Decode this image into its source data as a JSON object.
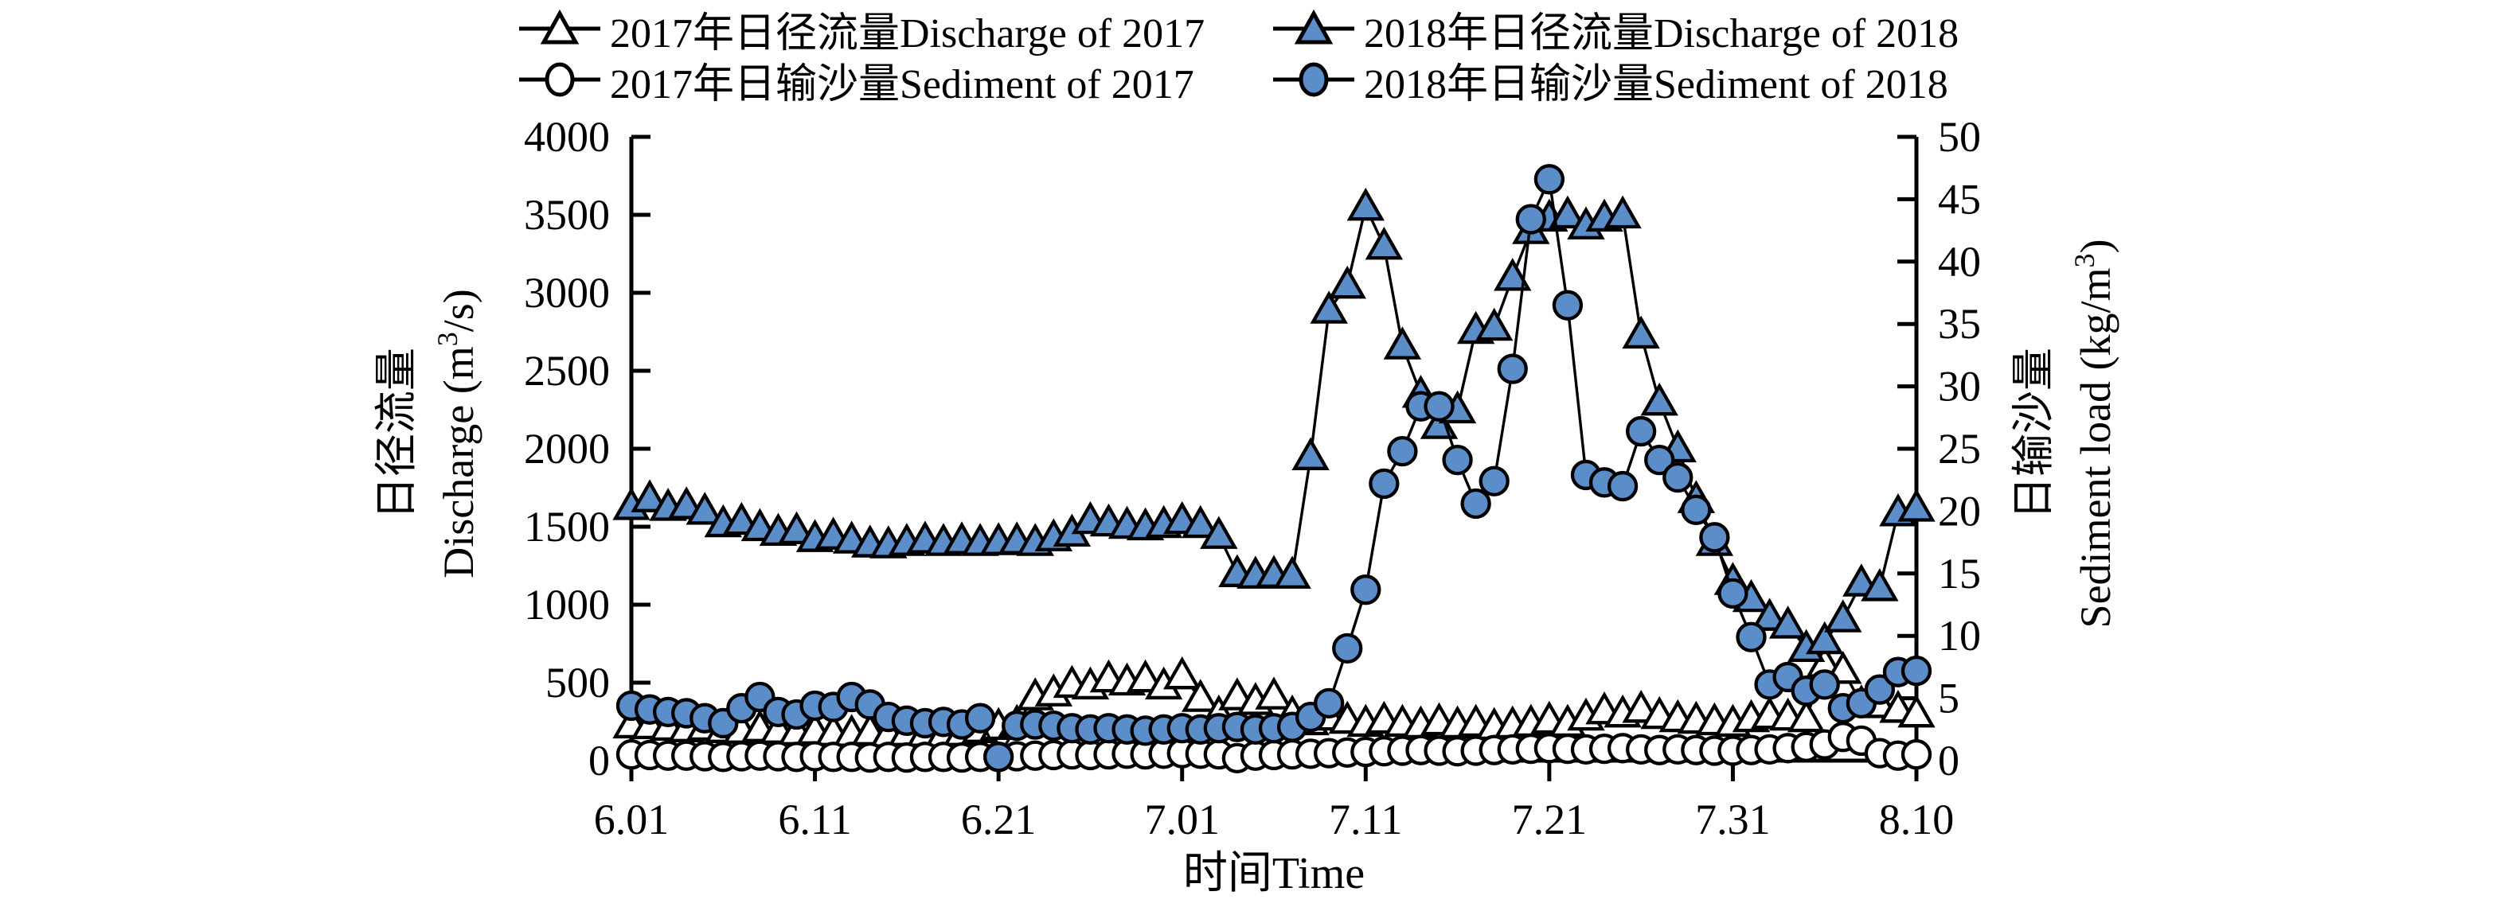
{
  "colors": {
    "marker_blue": "#5b8dc8",
    "open_fill": "#ffffff",
    "line": "#000000",
    "text": "#000000"
  },
  "legend": {
    "items": [
      {
        "id": "discharge-2017",
        "label": "2017年日径流量Discharge of 2017",
        "marker": "triangle-open"
      },
      {
        "id": "discharge-2018",
        "label": "2018年日径流量Discharge of 2018",
        "marker": "triangle-filled"
      },
      {
        "id": "sediment-2017",
        "label": "2017年日输沙量Sediment of 2017",
        "marker": "circle-open"
      },
      {
        "id": "sediment-2018",
        "label": "2018年日输沙量Sediment of 2018",
        "marker": "circle-filled"
      }
    ]
  },
  "chart_data": {
    "type": "line",
    "xlabel": "时间Time",
    "x_tick_labels": [
      "6.01",
      "6.11",
      "6.21",
      "7.01",
      "7.11",
      "7.21",
      "7.31",
      "8.10"
    ],
    "x_tick_positions": [
      0,
      10,
      20,
      30,
      40,
      50,
      60,
      70
    ],
    "x_dates": [
      "6.01",
      "6.02",
      "6.03",
      "6.04",
      "6.05",
      "6.06",
      "6.07",
      "6.08",
      "6.09",
      "6.10",
      "6.11",
      "6.12",
      "6.13",
      "6.14",
      "6.15",
      "6.16",
      "6.17",
      "6.18",
      "6.19",
      "6.20",
      "6.21",
      "6.22",
      "6.23",
      "6.24",
      "6.25",
      "6.26",
      "6.27",
      "6.28",
      "6.29",
      "6.30",
      "7.01",
      "7.02",
      "7.03",
      "7.04",
      "7.05",
      "7.06",
      "7.07",
      "7.08",
      "7.09",
      "7.10",
      "7.11",
      "7.12",
      "7.13",
      "7.14",
      "7.15",
      "7.16",
      "7.17",
      "7.18",
      "7.19",
      "7.20",
      "7.21",
      "7.22",
      "7.23",
      "7.24",
      "7.25",
      "7.26",
      "7.27",
      "7.28",
      "7.29",
      "7.30",
      "7.31",
      "8.01",
      "8.02",
      "8.03",
      "8.04",
      "8.05",
      "8.06",
      "8.07",
      "8.08",
      "8.09",
      "8.10"
    ],
    "left_axis": {
      "title_cn": "日径流量",
      "title_en": "Discharge (m³/s)",
      "title_en_parts": [
        {
          "t": "Discharge (m"
        },
        {
          "t": "3",
          "sup": true
        },
        {
          "t": "/s)"
        }
      ],
      "range": [
        0,
        4000
      ],
      "ticks": [
        0,
        500,
        1000,
        1500,
        2000,
        2500,
        3000,
        3500,
        4000
      ]
    },
    "right_axis": {
      "title_cn": "日输沙量",
      "title_en": "Sediment load (kg/m³)",
      "title_en_parts": [
        {
          "t": "Sediment load (kg/m"
        },
        {
          "t": "3",
          "sup": true
        },
        {
          "t": ")"
        }
      ],
      "range": [
        0,
        50
      ],
      "ticks": [
        0,
        5,
        10,
        15,
        20,
        25,
        30,
        35,
        40,
        45,
        50
      ]
    },
    "series": [
      {
        "id": "discharge-2017",
        "name": "2017年日径流量Discharge of 2017",
        "axis": "left",
        "marker": "triangle",
        "fill": "open",
        "values": [
          230,
          225,
          215,
          205,
          215,
          200,
          195,
          205,
          195,
          185,
          190,
          180,
          175,
          185,
          170,
          180,
          175,
          170,
          180,
          200,
          220,
          240,
          410,
          435,
          490,
          480,
          525,
          505,
          525,
          480,
          545,
          400,
          300,
          410,
          380,
          415,
          300,
          250,
          280,
          260,
          240,
          260,
          240,
          230,
          250,
          230,
          240,
          220,
          230,
          240,
          260,
          240,
          280,
          320,
          300,
          330,
          290,
          270,
          260,
          250,
          240,
          270,
          290,
          280,
          270,
          620,
          580,
          365,
          360,
          330,
          300
        ]
      },
      {
        "id": "discharge-2018",
        "name": "2018年日径流量Discharge of 2018",
        "axis": "left",
        "marker": "triangle",
        "fill": "blue",
        "values": [
          1630,
          1680,
          1625,
          1635,
          1600,
          1520,
          1535,
          1495,
          1465,
          1475,
          1425,
          1440,
          1415,
          1390,
          1385,
          1400,
          1415,
          1400,
          1410,
          1400,
          1405,
          1410,
          1400,
          1430,
          1460,
          1540,
          1525,
          1510,
          1500,
          1515,
          1540,
          1515,
          1445,
          1200,
          1190,
          1195,
          1190,
          1950,
          2890,
          3050,
          3550,
          3300,
          2660,
          2350,
          2150,
          2250,
          2760,
          2780,
          3100,
          3400,
          3480,
          3500,
          3430,
          3480,
          3500,
          2730,
          2300,
          2000,
          1675,
          1400,
          1150,
          1040,
          920,
          870,
          720,
          770,
          910,
          1140,
          1110,
          1590,
          1620
        ]
      },
      {
        "id": "sediment-2017",
        "name": "2017年日输沙量Sediment of 2017",
        "axis": "right",
        "marker": "circle",
        "fill": "open",
        "values": [
          0.5,
          0.45,
          0.4,
          0.4,
          0.35,
          0.3,
          0.35,
          0.4,
          0.35,
          0.3,
          0.35,
          0.3,
          0.3,
          0.25,
          0.3,
          0.25,
          0.3,
          0.3,
          0.25,
          0.3,
          0.3,
          0.35,
          0.4,
          0.45,
          0.5,
          0.45,
          0.5,
          0.55,
          0.5,
          0.55,
          0.6,
          0.55,
          0.5,
          0.2,
          0.4,
          0.45,
          0.5,
          0.55,
          0.6,
          0.65,
          0.7,
          0.75,
          0.8,
          0.85,
          0.8,
          0.75,
          0.8,
          0.85,
          0.9,
          0.95,
          1.0,
          0.95,
          0.9,
          0.95,
          1.0,
          0.9,
          0.85,
          0.9,
          0.85,
          0.8,
          0.8,
          0.85,
          0.9,
          1.0,
          1.1,
          1.3,
          1.9,
          1.6,
          0.6,
          0.4,
          0.5
        ]
      },
      {
        "id": "sediment-2018",
        "name": "2018年日输沙量Sediment of 2018",
        "axis": "right",
        "marker": "circle",
        "fill": "blue",
        "values": [
          4.4,
          4.1,
          3.9,
          3.8,
          3.4,
          3.0,
          4.2,
          5.1,
          3.9,
          3.7,
          4.4,
          4.3,
          5.1,
          4.5,
          3.5,
          3.2,
          3.0,
          3.1,
          2.9,
          3.4,
          0.3,
          2.8,
          2.9,
          2.8,
          2.6,
          2.5,
          2.6,
          2.5,
          2.4,
          2.5,
          2.6,
          2.5,
          2.6,
          2.7,
          2.5,
          2.6,
          2.7,
          3.5,
          4.6,
          9.0,
          13.7,
          22.2,
          24.8,
          28.4,
          28.4,
          24.1,
          20.6,
          22.4,
          31.4,
          43.4,
          46.6,
          36.5,
          22.9,
          22.3,
          22.0,
          26.4,
          24.1,
          22.7,
          20.1,
          17.9,
          13.4,
          9.9,
          6.1,
          6.7,
          5.6,
          6.1,
          4.2,
          4.6,
          5.7,
          7.1,
          7.2
        ]
      }
    ],
    "layout_hints": {
      "grid": false,
      "legend_position": "top",
      "x_is_daily_dates": true
    }
  }
}
